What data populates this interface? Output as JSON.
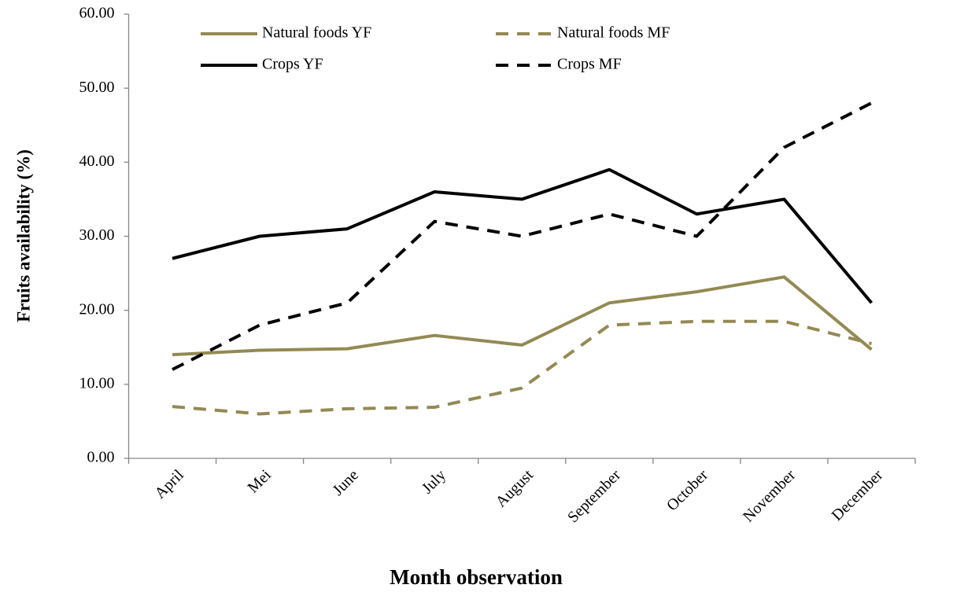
{
  "chart_data": {
    "type": "line",
    "x_label": "Month observation",
    "y_label": "Fruits availability (%)",
    "categories": [
      "April",
      "Mei",
      "June",
      "July",
      "August",
      "September",
      "October",
      "November",
      "December"
    ],
    "series": [
      {
        "name": "Natural foods YF",
        "color": "#938953",
        "dash": false,
        "values": [
          14,
          14.6,
          14.8,
          16.6,
          15.3,
          21,
          22.5,
          24.5,
          14.7
        ]
      },
      {
        "name": "Natural foods MF",
        "color": "#938953",
        "dash": true,
        "values": [
          7,
          6,
          6.7,
          6.9,
          9.5,
          18,
          18.5,
          18.5,
          15.5
        ]
      },
      {
        "name": "Crops YF",
        "color": "#000000",
        "dash": false,
        "values": [
          27,
          30,
          31,
          36,
          35,
          39,
          33,
          35,
          21
        ]
      },
      {
        "name": "Crops MF",
        "color": "#000000",
        "dash": true,
        "values": [
          12,
          18,
          21,
          32,
          30,
          33,
          30,
          42,
          48
        ]
      }
    ],
    "ylim": [
      0,
      60
    ],
    "yticks": [
      {
        "value": 0,
        "label": "0.00"
      },
      {
        "value": 10,
        "label": "10.00"
      },
      {
        "value": 20,
        "label": "20.00"
      },
      {
        "value": 30,
        "label": "30.00"
      },
      {
        "value": 40,
        "label": "40.00"
      },
      {
        "value": 50,
        "label": "50.00"
      },
      {
        "value": 60,
        "label": "60.00"
      }
    ],
    "grid": false
  }
}
